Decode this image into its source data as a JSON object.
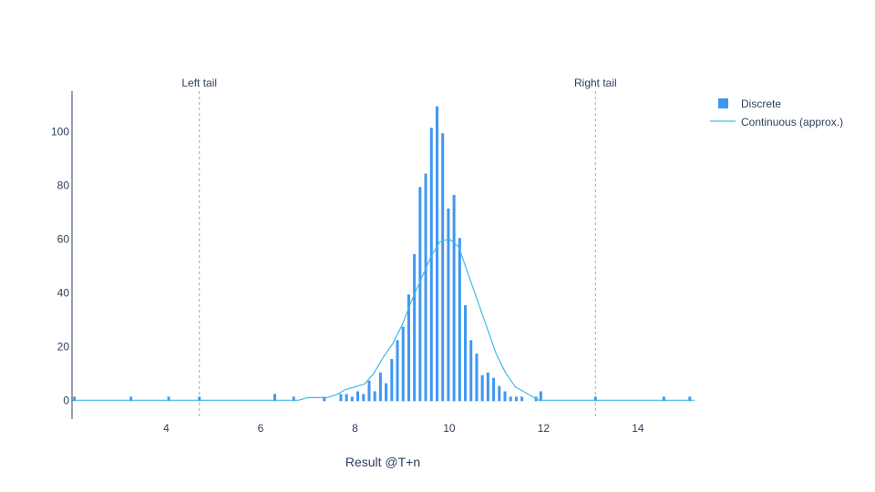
{
  "chart_data": {
    "type": "bar",
    "title": "",
    "xlabel": "Result @T+n",
    "ylabel": "",
    "xlim": [
      2.0,
      15.2
    ],
    "ylim": [
      -7,
      115
    ],
    "x_ticks": [
      4,
      6,
      8,
      10,
      12,
      14
    ],
    "y_ticks": [
      0,
      20,
      40,
      60,
      80,
      100
    ],
    "grid": false,
    "legend_position": "top-right",
    "colors": {
      "discrete": "#3f97f4",
      "continuous": "#40b9e9",
      "reference_line": "#b4b4b4",
      "axis": "#2a3f5f"
    },
    "reference_lines": [
      {
        "x": 4.7,
        "label": "Left tail"
      },
      {
        "x": 13.1,
        "label": "Right tail"
      }
    ],
    "series": [
      {
        "name": "Discrete",
        "type": "bar",
        "x": [
          2.05,
          3.25,
          4.05,
          4.7,
          6.3,
          6.7,
          7.35,
          7.7,
          7.82,
          7.94,
          8.06,
          8.18,
          8.3,
          8.42,
          8.54,
          8.66,
          8.78,
          8.9,
          9.02,
          9.14,
          9.26,
          9.38,
          9.5,
          9.62,
          9.74,
          9.86,
          9.98,
          10.1,
          10.22,
          10.34,
          10.46,
          10.58,
          10.7,
          10.82,
          10.94,
          11.06,
          11.18,
          11.3,
          11.42,
          11.54,
          11.84,
          11.94,
          13.1,
          14.55,
          15.1
        ],
        "values": [
          1,
          1,
          1,
          1,
          2,
          1,
          1,
          2,
          2,
          1,
          3,
          2,
          7,
          3,
          10,
          6,
          15,
          22,
          27,
          39,
          54,
          79,
          84,
          101,
          109,
          99,
          71,
          76,
          60,
          35,
          22,
          17,
          9,
          10,
          8,
          5,
          3,
          1,
          1,
          1,
          1,
          3,
          1,
          1,
          1
        ]
      },
      {
        "name": "Continuous (approx.)",
        "type": "line",
        "x": [
          2.0,
          6.8,
          7.0,
          7.2,
          7.4,
          7.6,
          7.8,
          8.0,
          8.2,
          8.4,
          8.6,
          8.8,
          9.0,
          9.2,
          9.4,
          9.6,
          9.8,
          10.0,
          10.2,
          10.4,
          10.6,
          10.8,
          11.0,
          11.2,
          11.4,
          11.6,
          11.8,
          11.9,
          12.0,
          15.2
        ],
        "values": [
          0,
          0,
          1,
          1,
          1,
          2,
          4,
          5,
          6,
          10,
          16,
          21,
          28,
          37,
          45,
          53,
          59,
          60,
          57,
          47,
          37,
          27,
          17,
          10,
          5,
          3,
          1,
          0,
          0,
          0
        ]
      }
    ]
  }
}
